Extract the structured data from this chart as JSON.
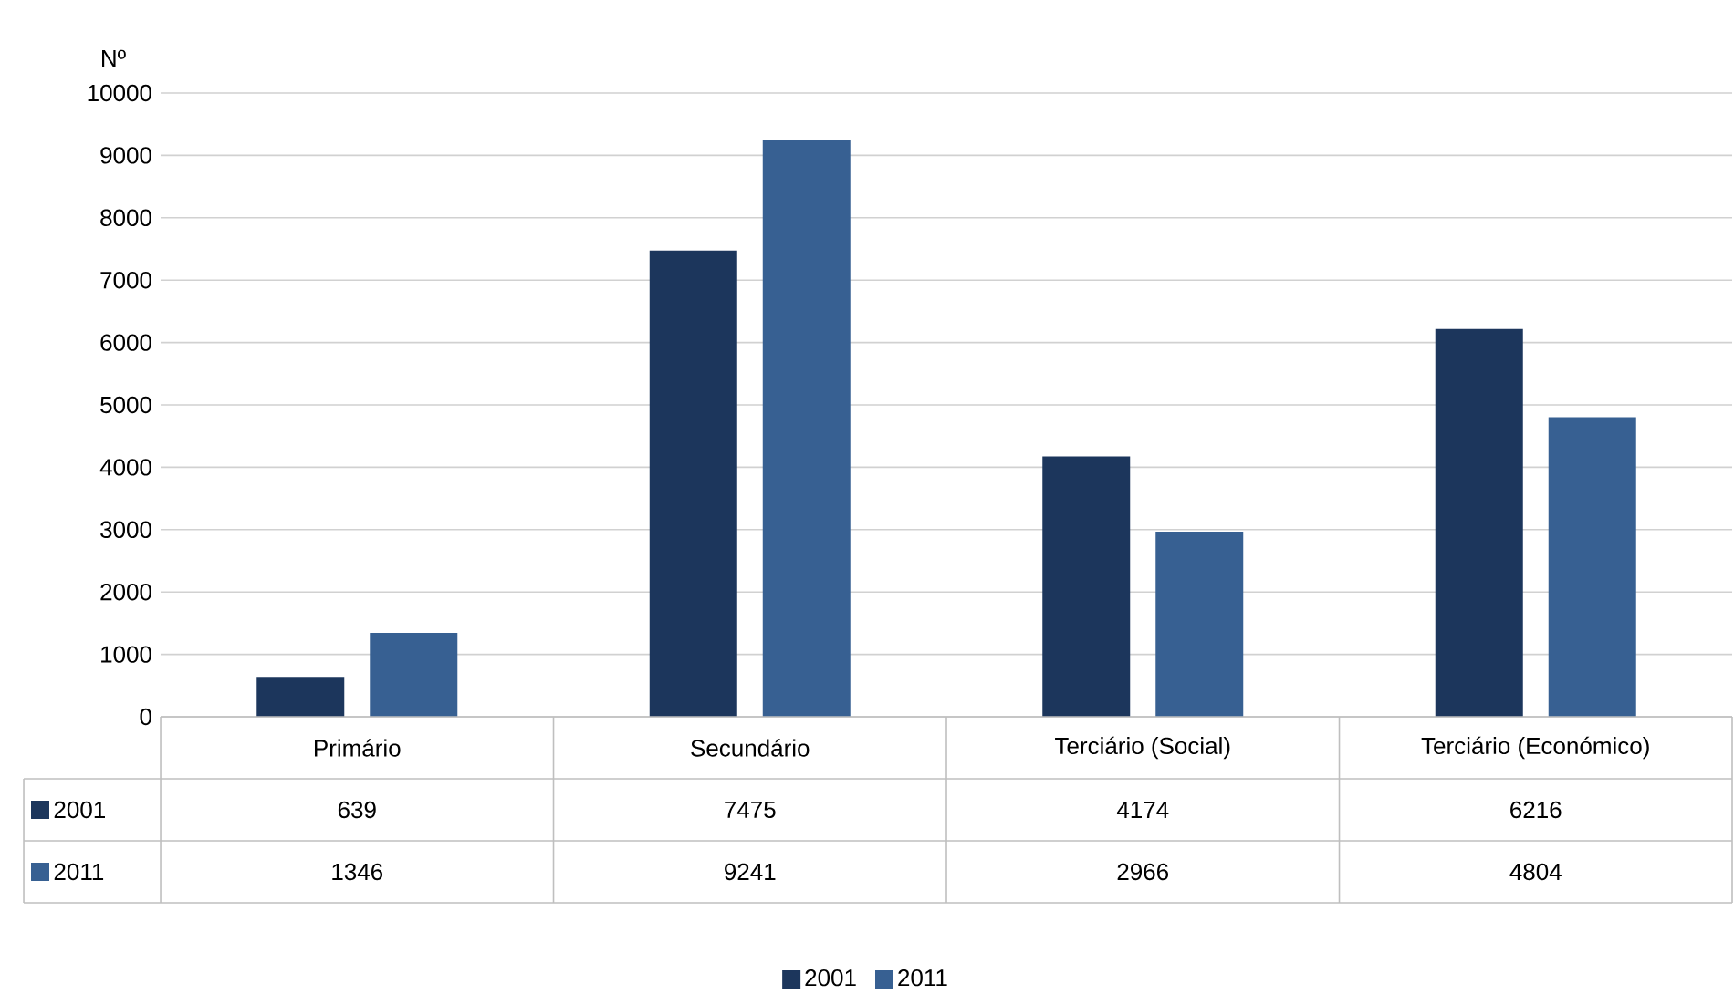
{
  "chart_data": {
    "type": "bar",
    "ylabel": "Nº",
    "categories": [
      "Primário",
      "Secundário",
      "Terciário (Social)",
      "Terciário (Económico)"
    ],
    "series": [
      {
        "name": "2001",
        "color": "#1c365c",
        "values": [
          639,
          7475,
          4174,
          6216
        ]
      },
      {
        "name": "2011",
        "color": "#376092",
        "values": [
          1346,
          9241,
          2966,
          4804
        ]
      }
    ],
    "ylim": [
      0,
      10000
    ],
    "yticks": [
      0,
      1000,
      2000,
      3000,
      4000,
      5000,
      6000,
      7000,
      8000,
      9000,
      10000
    ],
    "grid": "y",
    "legend": "bottom",
    "data_labels": true
  }
}
